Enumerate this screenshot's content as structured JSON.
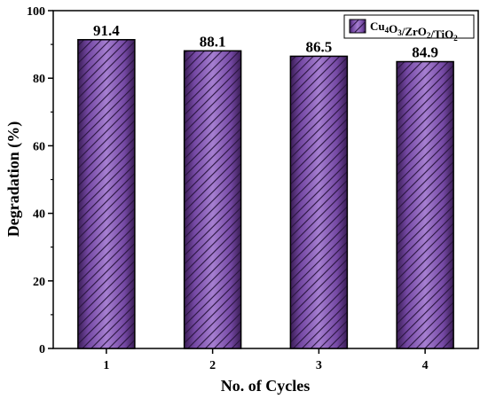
{
  "chart_data": {
    "type": "bar",
    "categories": [
      "1",
      "2",
      "3",
      "4"
    ],
    "series": [
      {
        "name": "Cu4O3/ZrO2/TiO2",
        "values": [
          91.4,
          88.1,
          86.5,
          84.9
        ]
      }
    ],
    "data_labels": [
      "91.4",
      "88.1",
      "86.5",
      "84.9"
    ],
    "xlabel": "No. of Cycles",
    "ylabel": "Degradation (%)",
    "ylim": [
      0,
      100
    ],
    "yticks": [
      0,
      20,
      40,
      60,
      80,
      100
    ],
    "grid": false,
    "legend_position": "top-right",
    "legend": {
      "parts": [
        {
          "t": "Cu",
          "sub": false
        },
        {
          "t": "4",
          "sub": true
        },
        {
          "t": "O",
          "sub": false
        },
        {
          "t": "3",
          "sub": true
        },
        {
          "t": "/ZrO",
          "sub": false
        },
        {
          "t": "2",
          "sub": true
        },
        {
          "t": "/TiO",
          "sub": false
        },
        {
          "t": "2",
          "sub": true
        }
      ]
    },
    "bar_color": "#8a5bb8",
    "hatch_color": "#2a1540",
    "pattern": "diagonal-hatch"
  }
}
